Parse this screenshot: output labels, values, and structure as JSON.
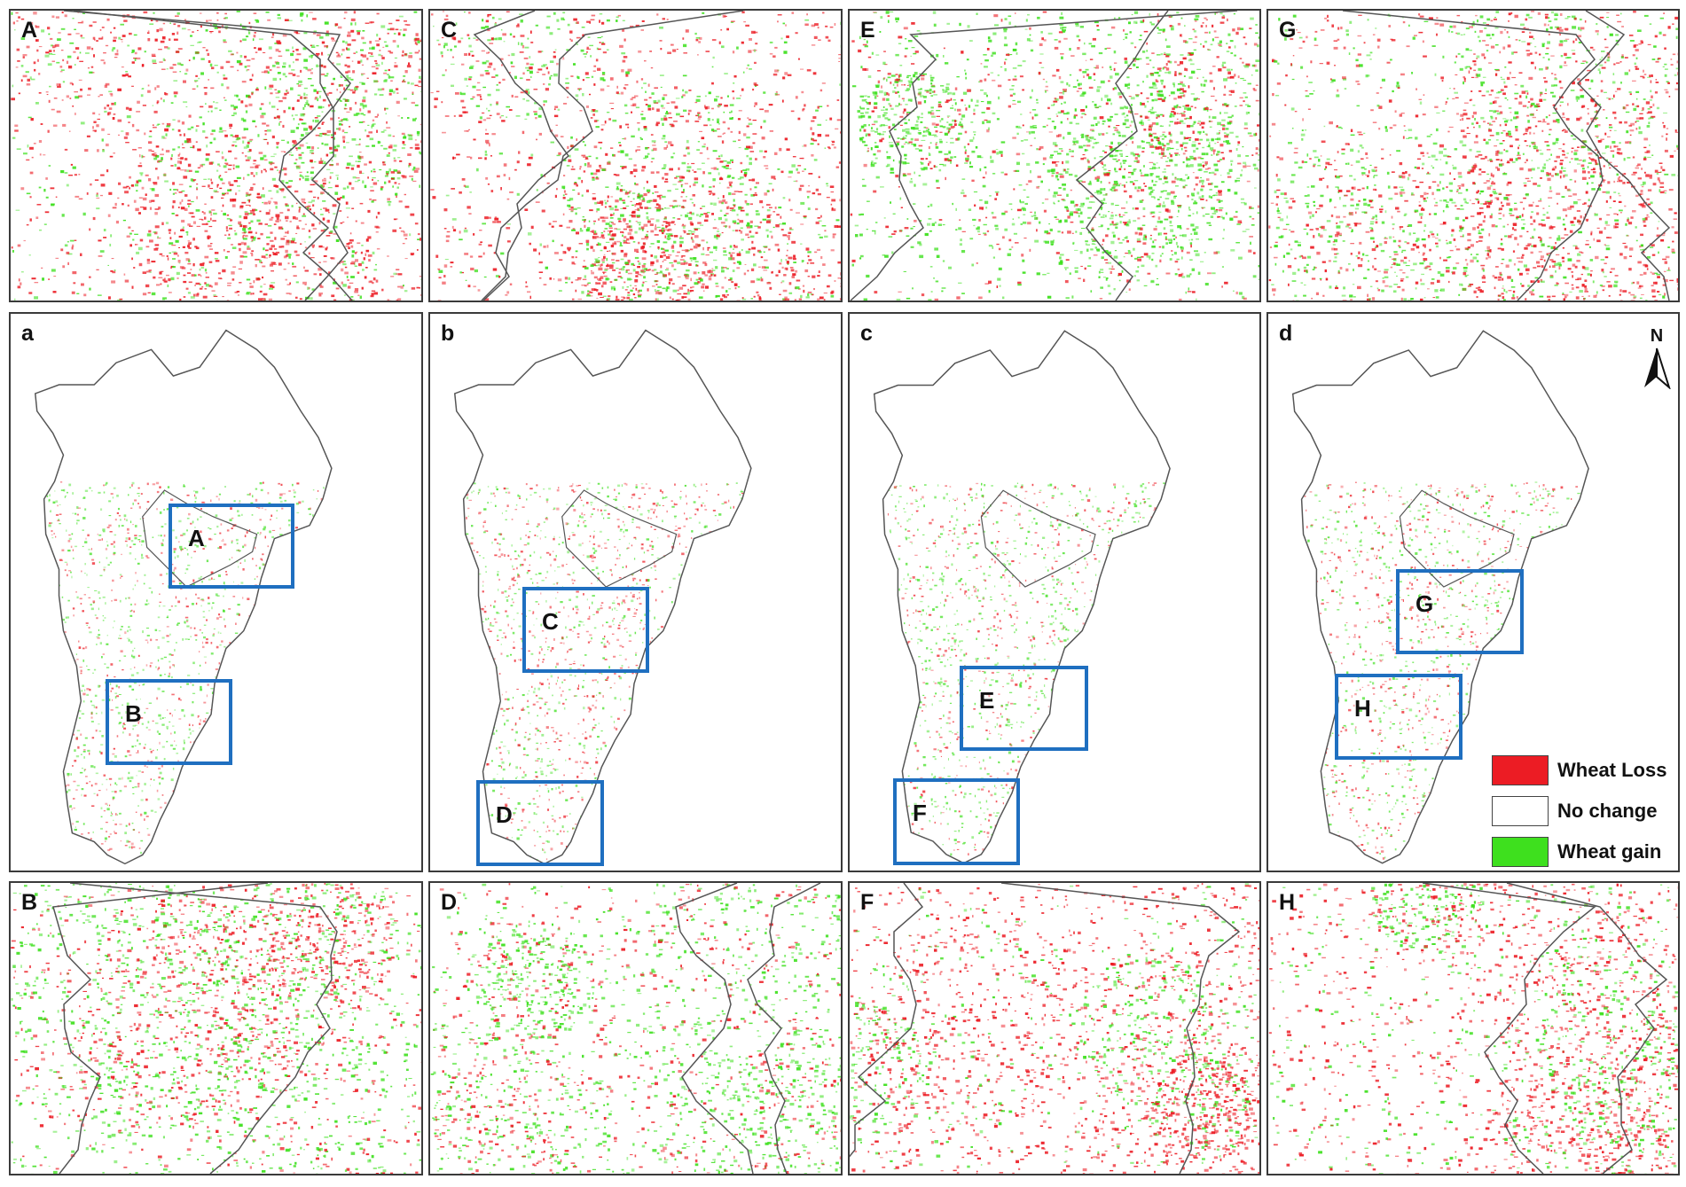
{
  "colors": {
    "wheat_loss": "#ec1c24",
    "no_change": "#ffffff",
    "wheat_gain": "#3ee01e",
    "inset_border": "#1f6fc0",
    "boundary": "#555555"
  },
  "zoom_panels": [
    {
      "label": "A",
      "loss_share": 0.5,
      "gain_share": 0.2
    },
    {
      "label": "C",
      "loss_share": 0.65,
      "gain_share": 0.15
    },
    {
      "label": "E",
      "loss_share": 0.25,
      "gain_share": 0.55
    },
    {
      "label": "G",
      "loss_share": 0.5,
      "gain_share": 0.35
    },
    {
      "label": "B",
      "loss_share": 0.3,
      "gain_share": 0.5
    },
    {
      "label": "D",
      "loss_share": 0.35,
      "gain_share": 0.45
    },
    {
      "label": "F",
      "loss_share": 0.7,
      "gain_share": 0.15
    },
    {
      "label": "H",
      "loss_share": 0.6,
      "gain_share": 0.3
    }
  ],
  "map_panels": [
    {
      "label": "a",
      "insets": [
        "A",
        "B"
      ]
    },
    {
      "label": "b",
      "insets": [
        "C",
        "D"
      ]
    },
    {
      "label": "c",
      "insets": [
        "E",
        "F"
      ]
    },
    {
      "label": "d",
      "insets": [
        "G",
        "H"
      ]
    }
  ],
  "north_arrow": {
    "label": "N",
    "icon": "north-arrow-icon"
  },
  "legend": [
    {
      "label": "Wheat Loss",
      "color_key": "wheat_loss"
    },
    {
      "label": "No change",
      "color_key": "no_change"
    },
    {
      "label": "Wheat gain",
      "color_key": "wheat_gain"
    }
  ]
}
